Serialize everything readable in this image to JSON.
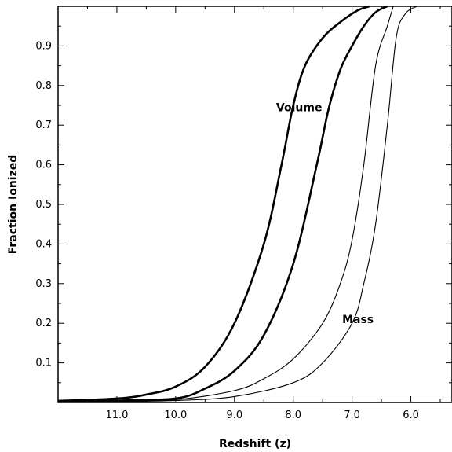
{
  "chart_data": {
    "type": "line",
    "xlabel": "Redshift (z)",
    "ylabel": "Fraction Ionized",
    "x_reversed": true,
    "xlim": [
      12.0,
      5.3
    ],
    "ylim": [
      0.0,
      1.0
    ],
    "xticks": [
      "11.0",
      "10.0",
      "9.0",
      "8.0",
      "7.0",
      "6.0"
    ],
    "xtick_values": [
      11,
      10,
      9,
      8,
      7,
      6
    ],
    "yticks": [
      "0.1",
      "0.2",
      "0.3",
      "0.4",
      "0.5",
      "0.6",
      "0.7",
      "0.8",
      "0.9"
    ],
    "ytick_values": [
      0.1,
      0.2,
      0.3,
      0.4,
      0.5,
      0.6,
      0.7,
      0.8,
      0.9
    ],
    "grid": false,
    "annotations": [
      {
        "text": "Volume",
        "x": 7.9,
        "y": 0.735
      },
      {
        "text": "Mass",
        "x": 6.9,
        "y": 0.2
      }
    ],
    "series": [
      {
        "group": "volume",
        "weight": "thick",
        "points": [
          [
            12.0,
            0.004
          ],
          [
            11.0,
            0.01
          ],
          [
            10.5,
            0.02
          ],
          [
            10.0,
            0.04
          ],
          [
            9.5,
            0.09
          ],
          [
            9.0,
            0.2
          ],
          [
            8.5,
            0.4
          ],
          [
            8.2,
            0.6
          ],
          [
            8.0,
            0.75
          ],
          [
            7.8,
            0.85
          ],
          [
            7.5,
            0.92
          ],
          [
            7.2,
            0.96
          ],
          [
            6.9,
            0.99
          ],
          [
            6.7,
            1.0
          ]
        ]
      },
      {
        "group": "volume",
        "weight": "thick",
        "points": [
          [
            12.0,
            0.003
          ],
          [
            11.0,
            0.005
          ],
          [
            10.0,
            0.01
          ],
          [
            9.5,
            0.035
          ],
          [
            9.0,
            0.08
          ],
          [
            8.5,
            0.17
          ],
          [
            8.0,
            0.35
          ],
          [
            7.6,
            0.6
          ],
          [
            7.4,
            0.74
          ],
          [
            7.2,
            0.84
          ],
          [
            7.0,
            0.9
          ],
          [
            6.8,
            0.95
          ],
          [
            6.6,
            0.985
          ],
          [
            6.4,
            1.0
          ]
        ]
      },
      {
        "group": "mass",
        "weight": "thin",
        "points": [
          [
            12.0,
            0.002
          ],
          [
            11.0,
            0.004
          ],
          [
            10.0,
            0.007
          ],
          [
            9.0,
            0.03
          ],
          [
            8.5,
            0.06
          ],
          [
            8.0,
            0.11
          ],
          [
            7.5,
            0.2
          ],
          [
            7.2,
            0.3
          ],
          [
            7.0,
            0.41
          ],
          [
            6.8,
            0.6
          ],
          [
            6.6,
            0.85
          ],
          [
            6.4,
            0.95
          ],
          [
            6.3,
            1.0
          ]
        ]
      },
      {
        "group": "mass",
        "weight": "thin",
        "points": [
          [
            12.0,
            0.001
          ],
          [
            11.0,
            0.002
          ],
          [
            10.0,
            0.005
          ],
          [
            9.0,
            0.015
          ],
          [
            8.0,
            0.05
          ],
          [
            7.5,
            0.1
          ],
          [
            7.0,
            0.2
          ],
          [
            6.8,
            0.3
          ],
          [
            6.6,
            0.45
          ],
          [
            6.4,
            0.7
          ],
          [
            6.25,
            0.92
          ],
          [
            6.1,
            0.98
          ],
          [
            5.9,
            1.0
          ]
        ]
      }
    ]
  }
}
